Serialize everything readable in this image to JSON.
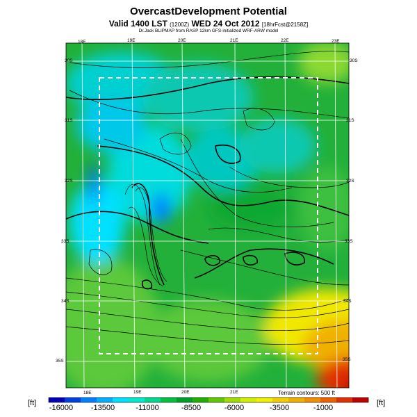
{
  "title": "OvercastDevelopment Potential",
  "subtitle": {
    "main": "Valid 1400 LST",
    "utc": "(1200Z)",
    "date": "WED 24 Oct 2012",
    "fcst": "[18hrFcst@2158Z]"
  },
  "subtitle2": "Dr.Jack BLIPMAP from RASP 12km GFS-initialized WRF-ARW model",
  "terrain_note": "Terrain contours: 500 ft",
  "units_left": "[ft]",
  "units_right": "[ft]",
  "top_lon_ticks": [
    "18E",
    "19E",
    "20E",
    "21E",
    "22E",
    "23E"
  ],
  "bottom_lon_ticks": [
    "18E",
    "19E",
    "20E",
    "21E"
  ],
  "left_lat_ticks": [
    "30S",
    "31S",
    "32S",
    "33S",
    "34S",
    "35S"
  ],
  "right_lat_ticks": [
    "30S",
    "31S",
    "32S",
    "33S",
    "34S",
    "35S"
  ],
  "colorbar": {
    "labels": [
      "-16000",
      "-13500",
      "-11000",
      "-8500",
      "-6000",
      "-3500",
      "-1000"
    ],
    "colors": [
      "#0000b4",
      "#0040e0",
      "#0080ff",
      "#00b0ff",
      "#00e0ff",
      "#00eacc",
      "#00d890",
      "#00c040",
      "#00a028",
      "#20b000",
      "#60c800",
      "#a0dc00",
      "#d0f000",
      "#f0f000",
      "#f0d000",
      "#f0b000",
      "#f09000",
      "#f06000",
      "#e03000",
      "#c00000"
    ]
  },
  "chart_data": {
    "type": "heatmap",
    "title": "OvercastDevelopment Potential",
    "units": "[ft]",
    "scale_range": [
      -16000,
      1000
    ],
    "scale_labels": [
      -16000,
      -13500,
      -11000,
      -8500,
      -6000,
      -3500,
      -1000
    ],
    "terrain_contour_interval_ft": 500
  }
}
